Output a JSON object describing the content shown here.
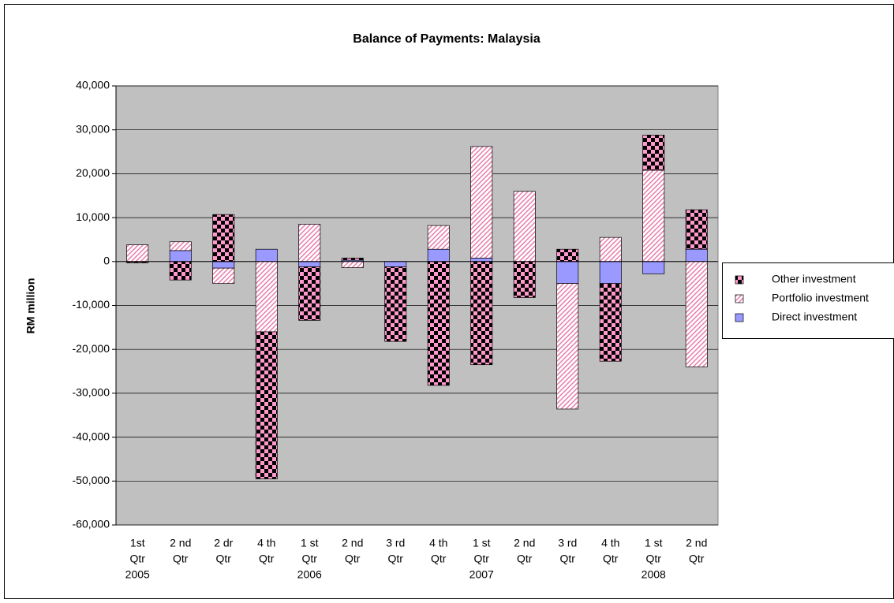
{
  "chart_data": {
    "type": "stacked_bar",
    "title": "Balance of Payments: Malaysia",
    "y_label": "RM million",
    "categories": [
      [
        "1st",
        "Qtr",
        "2005"
      ],
      [
        "2 nd",
        "Qtr"
      ],
      [
        "2 dr",
        "Qtr"
      ],
      [
        "4 th",
        "Qtr"
      ],
      [
        "1 st",
        "Qtr",
        "2006"
      ],
      [
        "2 nd",
        "Qtr"
      ],
      [
        "3 rd",
        "Qtr"
      ],
      [
        "4 th",
        "Qtr"
      ],
      [
        "1 st",
        "Qtr",
        "2007"
      ],
      [
        "2 nd",
        "Qtr"
      ],
      [
        "3 rd",
        "Qtr"
      ],
      [
        "4 th",
        "Qtr"
      ],
      [
        "1 st",
        "Qtr",
        "2008"
      ],
      [
        "2 nd",
        "Qtr"
      ]
    ],
    "series": [
      {
        "name": "Direct investment",
        "color": "#9999ff",
        "values": [
          -100,
          2500,
          -1500,
          2800,
          -1200,
          300,
          -1200,
          2800,
          800,
          0,
          -5000,
          -5000,
          -2800,
          2800
        ]
      },
      {
        "name": "Portfolio investment",
        "color": "#ff99cc",
        "values": [
          3800,
          2000,
          -3500,
          -16000,
          8500,
          -1400,
          0,
          5400,
          25400,
          16000,
          -28600,
          5500,
          20800,
          -24000
        ]
      },
      {
        "name": "Other investment",
        "color": "#ff66aa",
        "values": [
          -200,
          -4200,
          10700,
          -33500,
          -12200,
          500,
          -17000,
          -28200,
          -23500,
          -8200,
          2800,
          -17700,
          8000,
          9000
        ]
      }
    ],
    "ylim": [
      -60000,
      40000
    ],
    "yticks": [
      {
        "value": -60000,
        "label": "-60,000"
      },
      {
        "value": -50000,
        "label": "-50,000"
      },
      {
        "value": -40000,
        "label": "-40,000"
      },
      {
        "value": -30000,
        "label": "-30,000"
      },
      {
        "value": -20000,
        "label": "-20,000"
      },
      {
        "value": -10000,
        "label": "-10,000"
      },
      0,
      {
        "value": 10000,
        "label": "10,000"
      },
      {
        "value": 20000,
        "label": "20,000"
      },
      {
        "value": 30000,
        "label": "30,000"
      },
      {
        "value": 40000,
        "label": "40,000"
      }
    ],
    "grid": true,
    "legend": "right"
  }
}
